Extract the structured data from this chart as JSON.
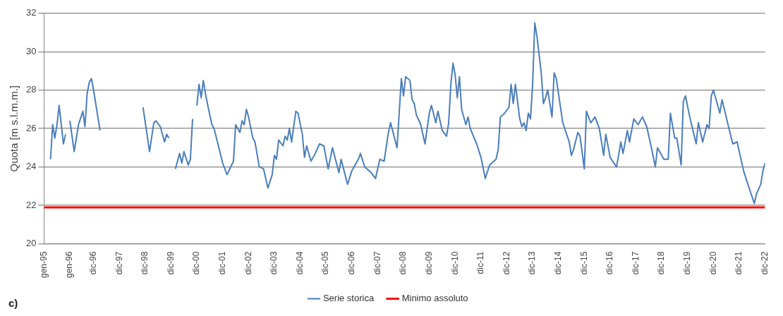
{
  "chart_data": {
    "type": "line",
    "ylabel": "Quota [m s.l.m.m.]",
    "annotations": [
      "c)"
    ],
    "xlim": [
      "1995-01",
      "2022-12"
    ],
    "xticks": [
      {
        "value": "1995-01",
        "label": "gen-95"
      },
      {
        "value": "1996-01",
        "label": "gen-96"
      },
      {
        "value": "1996-12",
        "label": "dic-96"
      },
      {
        "value": "1997-12",
        "label": "dic-97"
      },
      {
        "value": "1998-12",
        "label": "dic-98"
      },
      {
        "value": "1999-12",
        "label": "dic-99"
      },
      {
        "value": "2000-12",
        "label": "dic-00"
      },
      {
        "value": "2001-12",
        "label": "dic-01"
      },
      {
        "value": "2002-12",
        "label": "dic-02"
      },
      {
        "value": "2003-12",
        "label": "dic-03"
      },
      {
        "value": "2004-12",
        "label": "dic-04"
      },
      {
        "value": "2005-12",
        "label": "dic-05"
      },
      {
        "value": "2006-12",
        "label": "dic-06"
      },
      {
        "value": "2007-12",
        "label": "dic-07"
      },
      {
        "value": "2008-12",
        "label": "dic-08"
      },
      {
        "value": "2009-12",
        "label": "dic-09"
      },
      {
        "value": "2010-12",
        "label": "dic-10"
      },
      {
        "value": "2011-12",
        "label": "dic-11"
      },
      {
        "value": "2012-12",
        "label": "dic-12"
      },
      {
        "value": "2013-12",
        "label": "dic-13"
      },
      {
        "value": "2014-12",
        "label": "dic-14"
      },
      {
        "value": "2015-12",
        "label": "dic-15"
      },
      {
        "value": "2016-12",
        "label": "dic-16"
      },
      {
        "value": "2017-12",
        "label": "dic-17"
      },
      {
        "value": "2018-12",
        "label": "dic-18"
      },
      {
        "value": "2019-12",
        "label": "dic-19"
      },
      {
        "value": "2020-12",
        "label": "dic-20"
      },
      {
        "value": "2021-12",
        "label": "dic-21"
      },
      {
        "value": "2022-12",
        "label": "dic-22"
      }
    ],
    "ylim": [
      20,
      32
    ],
    "yticks": [
      20,
      22,
      24,
      26,
      28,
      30,
      32
    ],
    "grid": "y",
    "legend": "bottom",
    "marker": "none",
    "line_style": "solid",
    "series": [
      {
        "name": "Serie storica",
        "color": "#4a7ebb",
        "x": [
          "1995-04",
          "1995-05",
          "1995-06",
          "1995-07",
          "1995-08",
          "1995-09",
          "1995-10",
          "1995-11",
          "1995-12",
          "1996-01",
          "1996-03",
          "1996-04",
          "1996-05",
          "1996-07",
          "1996-08",
          "1996-09",
          "1996-10",
          "1996-11",
          "1996-12",
          "1997-03",
          "1997-06",
          "1998-11",
          "1999-02",
          "1999-04",
          "1999-05",
          "1999-07",
          "1999-09",
          "1999-10",
          "1999-11",
          "1999-12",
          "2000-02",
          "2000-04",
          "2000-05",
          "2000-06",
          "2000-08",
          "2000-09",
          "2000-10",
          "2000-11",
          "2000-12",
          "2001-01",
          "2001-02",
          "2001-03",
          "2001-04",
          "2001-06",
          "2001-07",
          "2001-08",
          "2001-12",
          "2002-02",
          "2002-05",
          "2002-06",
          "2002-08",
          "2002-09",
          "2002-10",
          "2002-11",
          "2002-12",
          "2003-02",
          "2003-03",
          "2003-05",
          "2003-07",
          "2003-09",
          "2003-11",
          "2003-12",
          "2004-01",
          "2004-02",
          "2004-04",
          "2004-05",
          "2004-06",
          "2004-07",
          "2004-08",
          "2004-10",
          "2004-11",
          "2005-01",
          "2005-02",
          "2005-03",
          "2005-05",
          "2005-07",
          "2005-09",
          "2005-11",
          "2006-01",
          "2006-03",
          "2006-06",
          "2006-07",
          "2006-10",
          "2006-12",
          "2007-03",
          "2007-04",
          "2007-06",
          "2007-09",
          "2007-11",
          "2008-01",
          "2008-03",
          "2008-05",
          "2008-06",
          "2008-09",
          "2008-11",
          "2008-12",
          "2009-01",
          "2009-03",
          "2009-04",
          "2009-05",
          "2009-06",
          "2009-08",
          "2009-10",
          "2009-12",
          "2010-01",
          "2010-03",
          "2010-04",
          "2010-06",
          "2010-08",
          "2010-09",
          "2010-10",
          "2010-11",
          "2010-12",
          "2011-01",
          "2011-02",
          "2011-03",
          "2011-05",
          "2011-06",
          "2011-07",
          "2011-10",
          "2011-12",
          "2012-02",
          "2012-04",
          "2012-07",
          "2012-08",
          "2012-09",
          "2012-11",
          "2013-01",
          "2013-02",
          "2013-03",
          "2013-04",
          "2013-06",
          "2013-07",
          "2013-08",
          "2013-09",
          "2013-10",
          "2013-11",
          "2013-12",
          "2014-01",
          "2014-02",
          "2014-04",
          "2014-05",
          "2014-06",
          "2014-07",
          "2014-09",
          "2014-10",
          "2014-11",
          "2015-02",
          "2015-05",
          "2015-06",
          "2015-07",
          "2015-09",
          "2015-10",
          "2015-12",
          "2016-01",
          "2016-03",
          "2016-05",
          "2016-07",
          "2016-09",
          "2016-10",
          "2016-12",
          "2017-03",
          "2017-05",
          "2017-06",
          "2017-08",
          "2017-09",
          "2017-11",
          "2018-01",
          "2018-03",
          "2018-05",
          "2018-07",
          "2018-09",
          "2018-10",
          "2019-01",
          "2019-03",
          "2019-04",
          "2019-06",
          "2019-07",
          "2019-09",
          "2019-10",
          "2019-11",
          "2020-01",
          "2020-04",
          "2020-05",
          "2020-07",
          "2020-09",
          "2020-10",
          "2020-11",
          "2020-12",
          "2021-03",
          "2021-04",
          "2021-07",
          "2021-09",
          "2021-11",
          "2022-02",
          "2022-04",
          "2022-07",
          "2022-08",
          "2022-10",
          "2022-11",
          "2022-12"
        ],
        "values": [
          24.4,
          26.2,
          25.5,
          26.2,
          27.2,
          26.2,
          25.2,
          25.7,
          null,
          26.4,
          24.8,
          25.5,
          26.2,
          26.9,
          26.1,
          27.8,
          28.4,
          28.6,
          28.0,
          25.9,
          null,
          27.1,
          24.8,
          26.3,
          26.4,
          26.1,
          25.3,
          25.7,
          25.5,
          null,
          23.9,
          24.7,
          24.2,
          24.8,
          24.1,
          24.4,
          26.5,
          null,
          27.2,
          28.3,
          27.6,
          28.5,
          27.8,
          26.7,
          26.2,
          26.0,
          24.2,
          23.6,
          24.3,
          26.2,
          25.8,
          26.4,
          26.2,
          27.0,
          26.6,
          25.5,
          25.3,
          24.0,
          23.9,
          22.9,
          23.6,
          24.6,
          24.4,
          25.4,
          25.1,
          25.6,
          25.4,
          26.0,
          25.3,
          26.9,
          26.8,
          25.7,
          24.5,
          25.1,
          24.3,
          24.7,
          25.2,
          25.1,
          23.9,
          25.0,
          23.7,
          24.4,
          23.1,
          23.8,
          24.4,
          24.7,
          24.0,
          23.7,
          23.4,
          24.4,
          24.3,
          25.8,
          26.3,
          25.0,
          28.6,
          27.7,
          28.7,
          28.5,
          27.5,
          27.3,
          26.7,
          26.2,
          25.2,
          26.8,
          27.2,
          26.3,
          26.9,
          25.9,
          25.6,
          26.3,
          28.3,
          29.4,
          28.8,
          27.6,
          28.7,
          27.0,
          26.2,
          26.6,
          26.0,
          25.2,
          24.5,
          23.4,
          24.1,
          24.4,
          24.9,
          26.6,
          26.8,
          27.1,
          28.3,
          27.3,
          28.3,
          26.5,
          26.1,
          26.3,
          25.9,
          26.8,
          26.5,
          28.3,
          31.5,
          30.8,
          28.9,
          27.3,
          27.6,
          28.0,
          26.6,
          28.9,
          28.6,
          26.3,
          25.3,
          24.6,
          24.9,
          25.8,
          25.6,
          23.9,
          26.9,
          26.3,
          26.6,
          26.0,
          24.6,
          25.7,
          24.5,
          24.0,
          25.3,
          24.7,
          25.9,
          25.3,
          26.5,
          26.2,
          26.6,
          26.1,
          25.1,
          24.0,
          25.0,
          24.4,
          24.4,
          26.8,
          25.5,
          25.5,
          24.1,
          27.4,
          27.7,
          26.6,
          25.2,
          26.3,
          25.3,
          26.2,
          26.0,
          27.7,
          28.0,
          26.8,
          27.5,
          26.1,
          25.2,
          25.3,
          23.8,
          23.1,
          22.1,
          22.6,
          23.1,
          23.8,
          24.2
        ]
      }
    ],
    "ref_lines": [
      {
        "axis": "y",
        "value": 21.9,
        "label": "Minimo assoluto",
        "color": "#ff0000"
      }
    ]
  }
}
